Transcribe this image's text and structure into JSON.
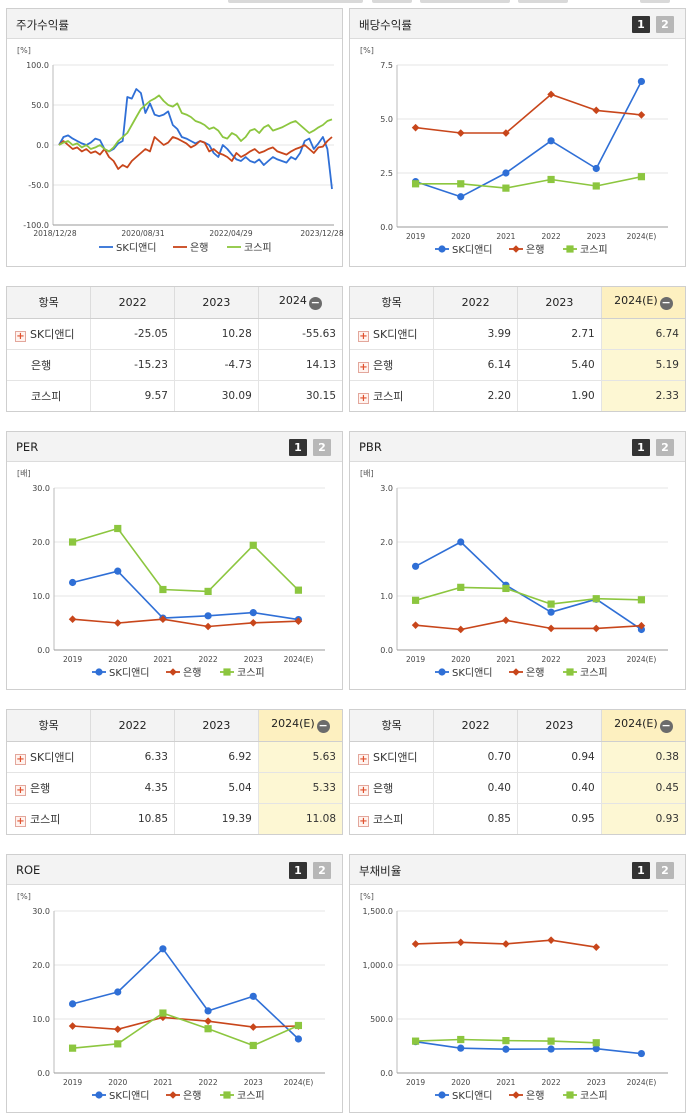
{
  "series_colors": {
    "sk": "#2f6fd6",
    "bank": "#c8461b",
    "kospi": "#8cc63f"
  },
  "legend": [
    "SK디앤디",
    "은행",
    "코스피"
  ],
  "panels": [
    {
      "id": "stock-return",
      "title": "주가수익률",
      "pages": [],
      "chart_data": {
        "type": "line",
        "unit": "[%]",
        "ylim": [
          -100,
          100
        ],
        "yticks": [
          "100.0",
          "50.0",
          "0.0",
          "-50.0",
          "-100.0"
        ],
        "xlabels": [
          "2018/12/28",
          "2020/08/31",
          "2022/04/29",
          "2023/12/28"
        ],
        "x": [
          0,
          1,
          2,
          3,
          4,
          5,
          6,
          7,
          8,
          9,
          10,
          11,
          12,
          13,
          14,
          15,
          16,
          17,
          18,
          19,
          20,
          21,
          22,
          23,
          24,
          25,
          26,
          27,
          28,
          29,
          30,
          31,
          32,
          33,
          34,
          35,
          36,
          37,
          38,
          39,
          40,
          41,
          42,
          43,
          44,
          45,
          46,
          47,
          48,
          49,
          50,
          51,
          52,
          53,
          54,
          55,
          56,
          57,
          58,
          59,
          60
        ],
        "series": [
          {
            "name": "SK디앤디",
            "color": "sk",
            "values": [
              0,
              10,
              12,
              8,
              5,
              2,
              0,
              3,
              8,
              6,
              -5,
              -8,
              -5,
              2,
              5,
              60,
              58,
              70,
              65,
              40,
              52,
              38,
              36,
              38,
              42,
              25,
              20,
              10,
              8,
              5,
              2,
              5,
              3,
              0,
              -10,
              -15,
              0,
              -5,
              -12,
              -18,
              -20,
              -15,
              -20,
              -22,
              -18,
              -25,
              -20,
              -15,
              -18,
              -20,
              -22,
              -15,
              -18,
              -10,
              5,
              8,
              -5,
              2,
              10,
              -5,
              -55
            ]
          },
          {
            "name": "은행",
            "color": "bank",
            "values": [
              0,
              5,
              0,
              -5,
              -3,
              -8,
              -5,
              -10,
              -8,
              -12,
              -5,
              -15,
              -20,
              -30,
              -25,
              -28,
              -20,
              -15,
              -10,
              -5,
              -8,
              10,
              5,
              0,
              3,
              10,
              8,
              5,
              2,
              -3,
              0,
              5,
              3,
              -8,
              -5,
              -10,
              -12,
              -15,
              -20,
              -10,
              -15,
              -12,
              -8,
              -5,
              -10,
              -8,
              -5,
              -3,
              -8,
              -10,
              -12,
              -8,
              -5,
              -3,
              0,
              -5,
              -10,
              -3,
              -2,
              5,
              10
            ]
          },
          {
            "name": "코스피",
            "color": "kospi",
            "values": [
              0,
              3,
              5,
              0,
              2,
              -3,
              0,
              -5,
              -3,
              0,
              -5,
              -8,
              -3,
              5,
              10,
              15,
              25,
              35,
              45,
              50,
              55,
              58,
              62,
              55,
              50,
              48,
              52,
              40,
              38,
              35,
              30,
              28,
              25,
              20,
              22,
              18,
              10,
              8,
              15,
              12,
              5,
              10,
              18,
              20,
              15,
              22,
              25,
              18,
              20,
              22,
              25,
              28,
              30,
              25,
              20,
              15,
              18,
              22,
              25,
              30,
              32
            ]
          }
        ]
      }
    },
    {
      "id": "dividend-yield",
      "title": "배당수익률",
      "pages": [
        "1",
        "2"
      ],
      "chart_data": {
        "type": "line",
        "unit": "[%]",
        "ylim": [
          0,
          7.5
        ],
        "yticks": [
          "7.5",
          "5.0",
          "2.5",
          "0.0"
        ],
        "categories": [
          "2019",
          "2020",
          "2021",
          "2022",
          "2023",
          "2024(E)"
        ],
        "series": [
          {
            "name": "SK디앤디",
            "color": "sk",
            "values": [
              2.1,
              1.4,
              2.5,
              3.99,
              2.71,
              6.74
            ]
          },
          {
            "name": "은행",
            "color": "bank",
            "values": [
              4.6,
              4.35,
              4.35,
              6.14,
              5.4,
              5.19
            ]
          },
          {
            "name": "코스피",
            "color": "kospi",
            "values": [
              2.0,
              2.0,
              1.8,
              2.2,
              1.9,
              2.33
            ]
          }
        ]
      }
    },
    {
      "id": "per",
      "title": "PER",
      "pages": [
        "1",
        "2"
      ],
      "chart_data": {
        "type": "line",
        "unit": "[배]",
        "ylim": [
          0,
          30
        ],
        "yticks": [
          "30.0",
          "20.0",
          "10.0",
          "0.0"
        ],
        "categories": [
          "2019",
          "2020",
          "2021",
          "2022",
          "2023",
          "2024(E)"
        ],
        "series": [
          {
            "name": "SK디앤디",
            "color": "sk",
            "values": [
              12.5,
              14.6,
              5.9,
              6.33,
              6.92,
              5.63
            ]
          },
          {
            "name": "은행",
            "color": "bank",
            "values": [
              5.7,
              5.0,
              5.7,
              4.35,
              5.04,
              5.33
            ]
          },
          {
            "name": "코스피",
            "color": "kospi",
            "values": [
              20.0,
              22.5,
              11.2,
              10.85,
              19.39,
              11.08
            ]
          }
        ]
      }
    },
    {
      "id": "pbr",
      "title": "PBR",
      "pages": [
        "1",
        "2"
      ],
      "chart_data": {
        "type": "line",
        "unit": "[배]",
        "ylim": [
          0,
          3
        ],
        "yticks": [
          "3.0",
          "2.0",
          "1.0",
          "0.0"
        ],
        "categories": [
          "2019",
          "2020",
          "2021",
          "2022",
          "2023",
          "2024(E)"
        ],
        "series": [
          {
            "name": "SK디앤디",
            "color": "sk",
            "values": [
              1.55,
              2.0,
              1.2,
              0.7,
              0.94,
              0.38
            ]
          },
          {
            "name": "은행",
            "color": "bank",
            "values": [
              0.46,
              0.38,
              0.55,
              0.4,
              0.4,
              0.45
            ]
          },
          {
            "name": "코스피",
            "color": "kospi",
            "values": [
              0.92,
              1.16,
              1.14,
              0.85,
              0.95,
              0.93
            ]
          }
        ]
      }
    },
    {
      "id": "roe",
      "title": "ROE",
      "pages": [
        "1",
        "2"
      ],
      "chart_data": {
        "type": "line",
        "unit": "[%]",
        "ylim": [
          0,
          30
        ],
        "yticks": [
          "30.0",
          "20.0",
          "10.0",
          "0.0"
        ],
        "categories": [
          "2019",
          "2020",
          "2021",
          "2022",
          "2023",
          "2024(E)"
        ],
        "series": [
          {
            "name": "SK디앤디",
            "color": "sk",
            "values": [
              12.8,
              15.0,
              23.0,
              11.5,
              14.2,
              6.3
            ]
          },
          {
            "name": "은행",
            "color": "bank",
            "values": [
              8.7,
              8.1,
              10.3,
              9.6,
              8.5,
              8.7
            ]
          },
          {
            "name": "코스피",
            "color": "kospi",
            "values": [
              4.6,
              5.4,
              11.1,
              8.2,
              5.1,
              8.8
            ]
          }
        ]
      }
    },
    {
      "id": "debt-ratio",
      "title": "부채비율",
      "pages": [
        "1",
        "2"
      ],
      "chart_data": {
        "type": "line",
        "unit": "[%]",
        "ylim": [
          0,
          1500
        ],
        "yticks": [
          "1,500.0",
          "1,000.0",
          "500.0",
          "0.0"
        ],
        "categories": [
          "2019",
          "2020",
          "2021",
          "2022",
          "2023",
          "2024(E)"
        ],
        "series": [
          {
            "name": "SK디앤디",
            "color": "sk",
            "values": [
              290,
              230,
              220,
              222,
              225,
              180
            ]
          },
          {
            "name": "은행",
            "color": "bank",
            "values": [
              1195,
              1210,
              1195,
              1230,
              1165,
              null
            ]
          },
          {
            "name": "코스피",
            "color": "kospi",
            "values": [
              295,
              310,
              300,
              295,
              280,
              null
            ]
          }
        ]
      }
    }
  ],
  "tables": [
    {
      "id": "stock-return-table",
      "headers": [
        "항목",
        "2022",
        "2023",
        "2024"
      ],
      "collapse_icon": "−",
      "highlight_last": false,
      "rows": [
        {
          "name": "SK디앤디",
          "expandable": true,
          "values": [
            "-25.05",
            "10.28",
            "-55.63"
          ]
        },
        {
          "name": "은행",
          "expandable": false,
          "values": [
            "-15.23",
            "-4.73",
            "14.13"
          ]
        },
        {
          "name": "코스피",
          "expandable": false,
          "values": [
            "9.57",
            "30.09",
            "30.15"
          ]
        }
      ]
    },
    {
      "id": "dividend-table",
      "headers": [
        "항목",
        "2022",
        "2023",
        "2024(E)"
      ],
      "collapse_icon": "−",
      "highlight_last": true,
      "rows": [
        {
          "name": "SK디앤디",
          "expandable": true,
          "values": [
            "3.99",
            "2.71",
            "6.74"
          ]
        },
        {
          "name": "은행",
          "expandable": true,
          "values": [
            "6.14",
            "5.40",
            "5.19"
          ]
        },
        {
          "name": "코스피",
          "expandable": true,
          "values": [
            "2.20",
            "1.90",
            "2.33"
          ]
        }
      ]
    },
    {
      "id": "per-table",
      "headers": [
        "항목",
        "2022",
        "2023",
        "2024(E)"
      ],
      "collapse_icon": "−",
      "highlight_last": true,
      "rows": [
        {
          "name": "SK디앤디",
          "expandable": true,
          "values": [
            "6.33",
            "6.92",
            "5.63"
          ]
        },
        {
          "name": "은행",
          "expandable": true,
          "values": [
            "4.35",
            "5.04",
            "5.33"
          ]
        },
        {
          "name": "코스피",
          "expandable": true,
          "values": [
            "10.85",
            "19.39",
            "11.08"
          ]
        }
      ]
    },
    {
      "id": "pbr-table",
      "headers": [
        "항목",
        "2022",
        "2023",
        "2024(E)"
      ],
      "collapse_icon": "−",
      "highlight_last": true,
      "rows": [
        {
          "name": "SK디앤디",
          "expandable": true,
          "values": [
            "0.70",
            "0.94",
            "0.38"
          ]
        },
        {
          "name": "은행",
          "expandable": true,
          "values": [
            "0.40",
            "0.40",
            "0.45"
          ]
        },
        {
          "name": "코스피",
          "expandable": true,
          "values": [
            "0.85",
            "0.95",
            "0.93"
          ]
        }
      ]
    }
  ]
}
